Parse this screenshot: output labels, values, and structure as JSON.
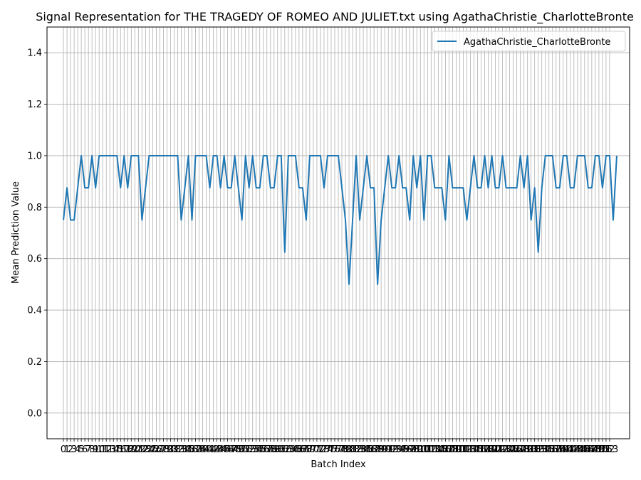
{
  "chart_data": {
    "type": "line",
    "title": "Signal Representation for THE TRAGEDY OF ROMEO AND JULIET.txt using AgathaChristie_CharlotteBronte",
    "xlabel": "Batch Index",
    "ylabel": "Mean Prediction Value",
    "xlim": [
      -4.6,
      158.6
    ],
    "ylim": [
      -0.1,
      1.5
    ],
    "yticks": [
      0.0,
      0.2,
      0.4,
      0.6,
      0.8,
      1.0,
      1.2,
      1.4
    ],
    "ytick_labels": [
      "0.0",
      "0.2",
      "0.4",
      "0.6",
      "0.8",
      "1.0",
      "1.2",
      "1.4"
    ],
    "x_tick_count": 154,
    "x_tick_labels_visible": "0123456789101112131415161718192021222324252627282930313233343536373839404142434445464748495051525354555657585960616263646566676869707172737475767778798081828384858687888990919293949596979899100101102103104105106107108109110111112113114115116117118119120121122123124125126127128129130131132133134135136137138139140141142143144145146147148149150151152153",
    "grid": true,
    "legend_position": "upper right",
    "series": [
      {
        "name": "AgathaChristie_CharlotteBronte",
        "color": "#1f77b4",
        "x_start": 0,
        "values": [
          0.75,
          0.875,
          0.75,
          0.75,
          0.875,
          1.0,
          0.875,
          0.875,
          1.0,
          0.875,
          1.0,
          1.0,
          1.0,
          1.0,
          1.0,
          1.0,
          0.875,
          1.0,
          0.875,
          1.0,
          1.0,
          1.0,
          0.75,
          0.875,
          1.0,
          1.0,
          1.0,
          1.0,
          1.0,
          1.0,
          1.0,
          1.0,
          1.0,
          0.75,
          0.875,
          1.0,
          0.75,
          1.0,
          1.0,
          1.0,
          1.0,
          0.875,
          1.0,
          1.0,
          0.875,
          1.0,
          0.875,
          0.875,
          1.0,
          0.875,
          0.75,
          1.0,
          0.875,
          1.0,
          0.875,
          0.875,
          1.0,
          1.0,
          0.875,
          0.875,
          1.0,
          1.0,
          0.625,
          1.0,
          1.0,
          1.0,
          0.875,
          0.875,
          0.75,
          1.0,
          1.0,
          1.0,
          1.0,
          0.875,
          1.0,
          1.0,
          1.0,
          1.0,
          0.875,
          0.75,
          0.5,
          0.75,
          1.0,
          0.75,
          0.875,
          1.0,
          0.875,
          0.875,
          0.5,
          0.75,
          0.875,
          1.0,
          0.875,
          0.875,
          1.0,
          0.875,
          0.875,
          0.75,
          1.0,
          0.875,
          1.0,
          0.75,
          1.0,
          1.0,
          0.875,
          0.875,
          0.875,
          0.75,
          1.0,
          0.875,
          0.875,
          0.875,
          0.875,
          0.75,
          0.875,
          1.0,
          0.875,
          0.875,
          1.0,
          0.875,
          1.0,
          0.875,
          0.875,
          1.0,
          0.875,
          0.875,
          0.875,
          0.875,
          1.0,
          0.875,
          1.0,
          0.75,
          0.875,
          0.625,
          0.875,
          1.0,
          1.0,
          1.0,
          0.875,
          0.875,
          1.0,
          1.0,
          0.875,
          0.875,
          1.0,
          1.0,
          1.0,
          0.875,
          0.875,
          1.0,
          1.0,
          0.875,
          1.0,
          1.0,
          0.75,
          1.0
        ]
      }
    ]
  }
}
